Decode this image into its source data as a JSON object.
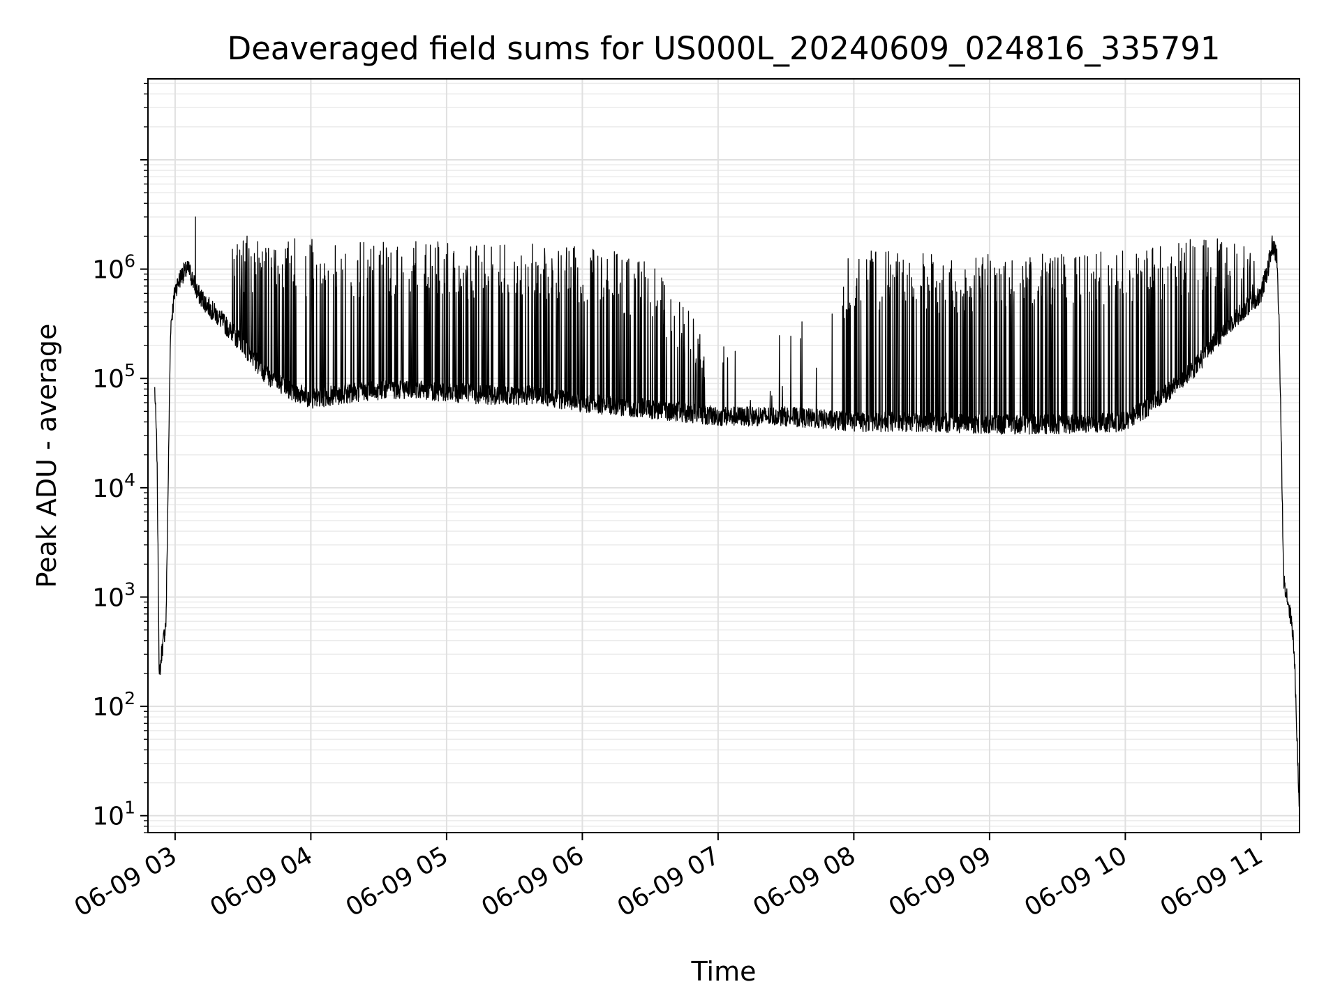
{
  "chart_data": {
    "type": "line",
    "title": "Deaveraged field sums for US000L_20240609_024816_335791",
    "xlabel": "Time",
    "ylabel": "Peak ADU - average",
    "yscale": "log",
    "ylim": [
      7,
      55000000
    ],
    "xlim": [
      "2024-06-09 02:48",
      "2024-06-09 11:17"
    ],
    "grid": true,
    "legend": "none",
    "line_color": "#000000",
    "x_ticks": [
      "06-09 03",
      "06-09 04",
      "06-09 05",
      "06-09 06",
      "06-09 07",
      "06-09 08",
      "06-09 09",
      "06-09 10",
      "06-09 11"
    ],
    "y_ticks": [
      {
        "base": "10",
        "exp": "1",
        "value": 10
      },
      {
        "base": "10",
        "exp": "2",
        "value": 100
      },
      {
        "base": "10",
        "exp": "3",
        "value": 1000
      },
      {
        "base": "10",
        "exp": "4",
        "value": 10000
      },
      {
        "base": "10",
        "exp": "5",
        "value": 100000
      },
      {
        "base": "10",
        "exp": "6",
        "value": 1000000
      }
    ],
    "series": [
      {
        "baseline": {
          "x": [
            "2024-06-09 02:51",
            "2024-06-09 02:52",
            "2024-06-09 02:53",
            "2024-06-09 02:54",
            "2024-06-09 02:56",
            "2024-06-09 02:58",
            "2024-06-09 03:00",
            "2024-06-09 03:03",
            "2024-06-09 03:06",
            "2024-06-09 03:10",
            "2024-06-09 03:15",
            "2024-06-09 03:20",
            "2024-06-09 03:30",
            "2024-06-09 03:40",
            "2024-06-09 03:50",
            "2024-06-09 04:00",
            "2024-06-09 04:20",
            "2024-06-09 04:40",
            "2024-06-09 05:00",
            "2024-06-09 05:20",
            "2024-06-09 05:40",
            "2024-06-09 06:00",
            "2024-06-09 06:20",
            "2024-06-09 06:40",
            "2024-06-09 07:00",
            "2024-06-09 07:30",
            "2024-06-09 08:00",
            "2024-06-09 08:30",
            "2024-06-09 09:00",
            "2024-06-09 09:30",
            "2024-06-09 10:00",
            "2024-06-09 10:15",
            "2024-06-09 10:30",
            "2024-06-09 10:45",
            "2024-06-09 11:00",
            "2024-06-09 11:03",
            "2024-06-09 11:05",
            "2024-06-09 11:07",
            "2024-06-09 11:08",
            "2024-06-09 11:10",
            "2024-06-09 11:12",
            "2024-06-09 11:14",
            "2024-06-09 11:15",
            "2024-06-09 11:17"
          ],
          "y": [
            80000,
            20000,
            180,
            300,
            600,
            300000,
            650000,
            900000,
            1000000,
            600000,
            450000,
            350000,
            200000,
            110000,
            80000,
            65000,
            75000,
            80000,
            75000,
            70000,
            70000,
            60000,
            55000,
            50000,
            45000,
            45000,
            40000,
            40000,
            38000,
            38000,
            40000,
            65000,
            120000,
            300000,
            600000,
            1000000,
            1700000,
            1300000,
            300000,
            1500,
            900,
            500,
            200,
            10
          ]
        },
        "spikes": {
          "x": [
            "2024-06-09 03:10",
            "2024-06-09 03:35",
            "2024-06-09 04:00",
            "2024-06-09 04:30",
            "2024-06-09 05:00",
            "2024-06-09 05:30",
            "2024-06-09 06:00",
            "2024-06-09 06:30",
            "2024-06-09 07:00",
            "2024-06-09 07:30",
            "2024-06-09 08:00",
            "2024-06-09 08:30",
            "2024-06-09 09:00",
            "2024-06-09 09:30",
            "2024-06-09 10:00",
            "2024-06-09 10:30",
            "2024-06-09 11:00"
          ],
          "y": [
            3000000,
            1900000,
            1900000,
            1800000,
            1800000,
            1800000,
            1700000,
            1200000,
            200000,
            300000,
            1500000,
            1400000,
            1400000,
            1400000,
            1500000,
            1900000,
            1900000
          ]
        },
        "peak_max": 3000000,
        "name": ""
      }
    ]
  }
}
